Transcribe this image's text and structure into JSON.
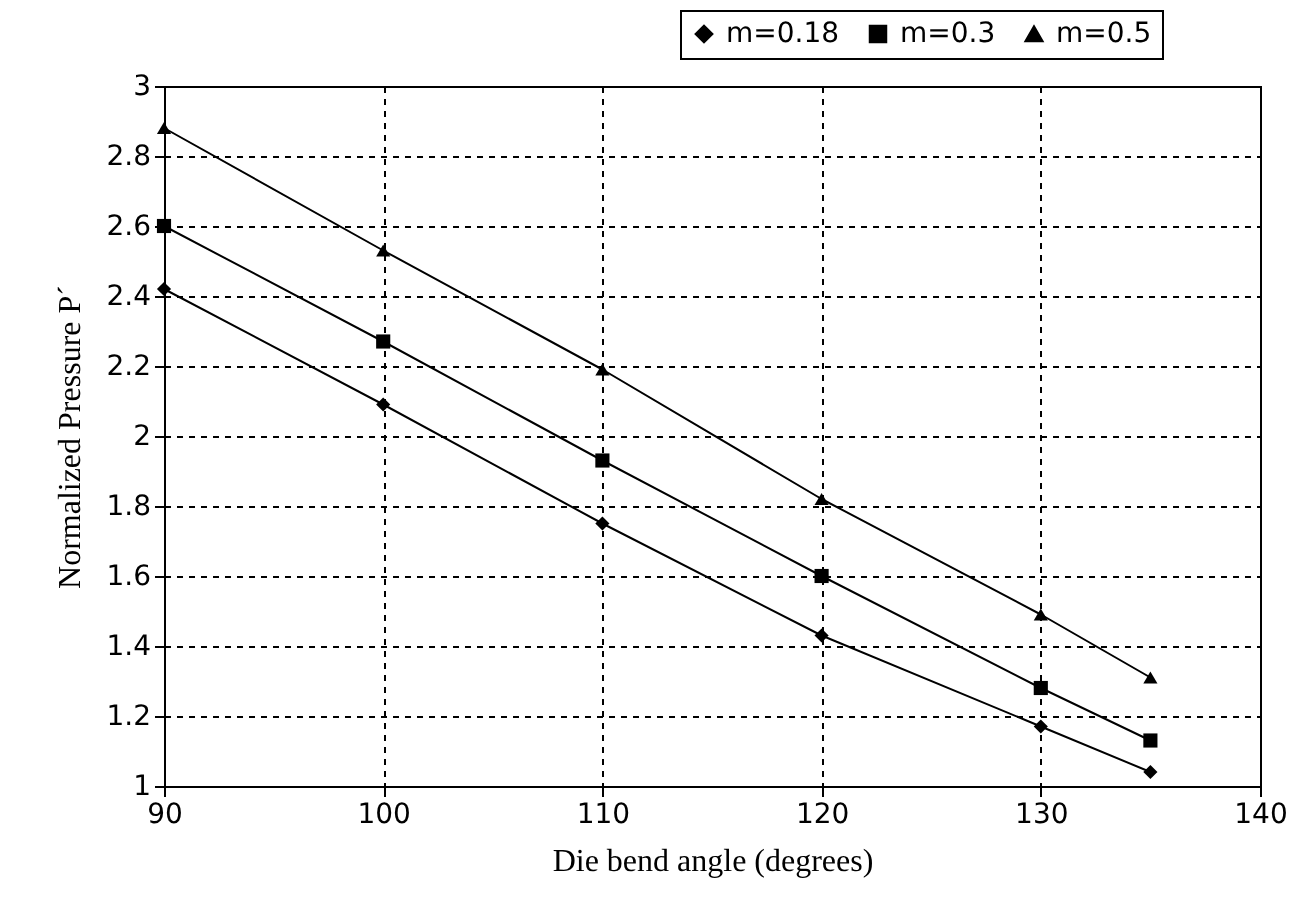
{
  "chart_data": {
    "type": "line",
    "xlabel": "Die bend angle (degrees)",
    "ylabel": "Normalized Pressure P´",
    "x": [
      90,
      100,
      110,
      120,
      130,
      135
    ],
    "series": [
      {
        "name": "m=0.18",
        "color": "#000000",
        "marker": "diamond",
        "values": [
          2.42,
          2.09,
          1.75,
          1.43,
          1.17,
          1.04
        ]
      },
      {
        "name": "m=0.3",
        "color": "#000000",
        "marker": "square",
        "values": [
          2.6,
          2.27,
          1.93,
          1.6,
          1.28,
          1.13
        ]
      },
      {
        "name": "m=0.5",
        "color": "#000000",
        "marker": "triangle",
        "values": [
          2.88,
          2.53,
          2.19,
          1.82,
          1.49,
          1.31
        ]
      }
    ],
    "xlim": [
      90,
      140
    ],
    "xticks": [
      90,
      100,
      110,
      120,
      130,
      140
    ],
    "ylim": [
      1,
      3
    ],
    "yticks": [
      1,
      1.2,
      1.4,
      1.6,
      1.8,
      2,
      2.2,
      2.4,
      2.6,
      2.8,
      3
    ],
    "grid": true,
    "legend": "top right",
    "line_style": "solid"
  }
}
